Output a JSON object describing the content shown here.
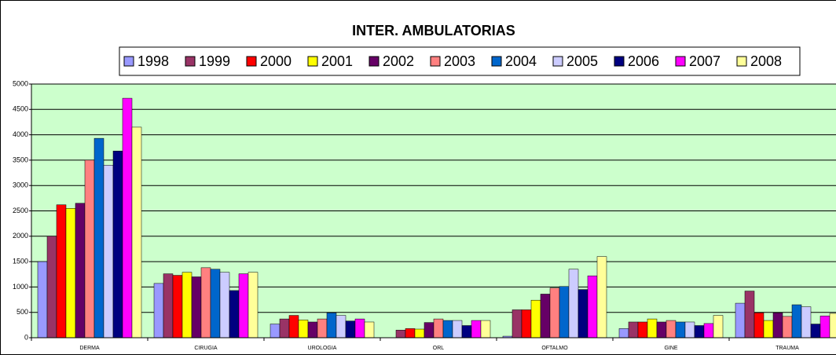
{
  "chart_data": {
    "type": "bar",
    "title": "INTER. AMBULATORIAS",
    "categories": [
      "DERMA",
      "CIRUGIA",
      "UROLOGIA",
      "ORL",
      "OFTALMO",
      "GINE",
      "TRAUMA"
    ],
    "series": [
      {
        "name": "1998",
        "color": "#9999ff",
        "values": [
          1500,
          1070,
          270,
          0,
          30,
          180,
          680
        ]
      },
      {
        "name": "1999",
        "color": "#993366",
        "values": [
          2000,
          1260,
          370,
          150,
          550,
          310,
          920
        ]
      },
      {
        "name": "2000",
        "color": "#ff0000",
        "values": [
          2620,
          1230,
          440,
          180,
          550,
          310,
          490
        ]
      },
      {
        "name": "2001",
        "color": "#ffff00",
        "values": [
          2550,
          1290,
          350,
          170,
          740,
          370,
          340
        ]
      },
      {
        "name": "2002",
        "color": "#660066",
        "values": [
          2650,
          1200,
          310,
          300,
          860,
          310,
          490
        ]
      },
      {
        "name": "2003",
        "color": "#ff8080",
        "values": [
          3500,
          1380,
          370,
          370,
          980,
          340,
          420
        ]
      },
      {
        "name": "2004",
        "color": "#0066cc",
        "values": [
          3930,
          1350,
          490,
          340,
          1010,
          310,
          650
        ]
      },
      {
        "name": "2005",
        "color": "#ccccff",
        "values": [
          3400,
          1290,
          440,
          340,
          1350,
          310,
          610
        ]
      },
      {
        "name": "2006",
        "color": "#000080",
        "values": [
          3680,
          930,
          330,
          240,
          950,
          240,
          270
        ]
      },
      {
        "name": "2007",
        "color": "#ff00ff",
        "values": [
          4720,
          1260,
          370,
          340,
          1220,
          280,
          430
        ]
      },
      {
        "name": "2008",
        "color": "#ffff99",
        "values": [
          4150,
          1290,
          310,
          340,
          1600,
          440,
          480
        ]
      }
    ],
    "ylim": [
      0,
      5000
    ],
    "yticks": [
      0,
      500,
      1000,
      1500,
      2000,
      2500,
      3000,
      3500,
      4000,
      4500,
      5000
    ],
    "grid": true,
    "legend": "top"
  }
}
